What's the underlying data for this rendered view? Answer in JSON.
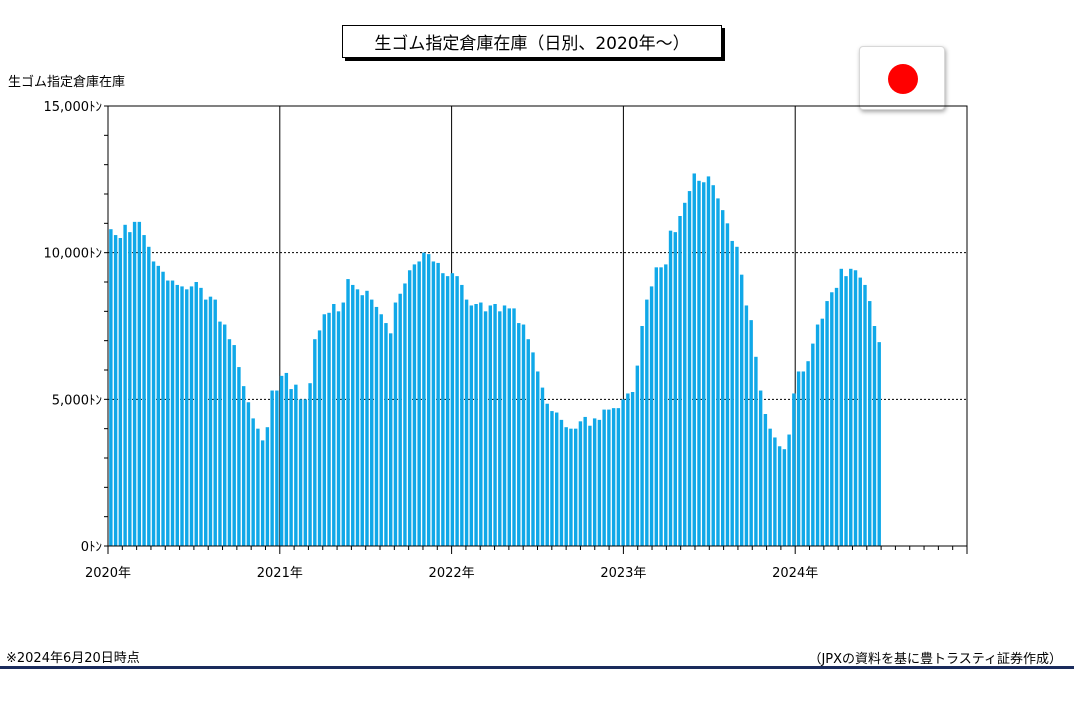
{
  "colors": {
    "bar": "#10a8e8",
    "flag_disc": "#ff0000",
    "footer_rule": "#1a2b5c"
  },
  "flag": {
    "icon": "japan-flag-icon"
  },
  "footnote": "※2024年6月20日時点",
  "source": "（JPXの資料を基に豊トラスティ証券作成）",
  "chart_data": {
    "type": "bar",
    "title": "生ゴム指定倉庫在庫（日別、2020年～）",
    "ylabel": "生ゴム指定倉庫在庫",
    "ylim": [
      0,
      15000
    ],
    "yticks": [
      {
        "value": 0,
        "label": "0ﾄﾝ"
      },
      {
        "value": 5000,
        "label": "5,000ﾄﾝ"
      },
      {
        "value": 10000,
        "label": "10,000ﾄﾝ"
      },
      {
        "value": 15000,
        "label": "15,000ﾄﾝ"
      }
    ],
    "xticks": [
      "2020年",
      "2021年",
      "2022年",
      "2023年",
      "2024年"
    ],
    "xlim_years": [
      2020,
      2025
    ],
    "grid": {
      "horizontal": true,
      "vertical_year_lines": true
    },
    "values": [
      10800,
      10600,
      10500,
      10950,
      10700,
      11050,
      11050,
      10600,
      10200,
      9700,
      9550,
      9350,
      9050,
      9050,
      8900,
      8850,
      8750,
      8850,
      9000,
      8800,
      8400,
      8500,
      8400,
      7650,
      7550,
      7050,
      6850,
      6100,
      5450,
      4900,
      4350,
      4000,
      3600,
      4050,
      5300,
      5300,
      5800,
      5900,
      5350,
      5500,
      5000,
      5000,
      5550,
      7050,
      7350,
      7900,
      7950,
      8250,
      8000,
      8300,
      9100,
      8900,
      8750,
      8550,
      8700,
      8400,
      8150,
      7900,
      7600,
      7250,
      8300,
      8600,
      8950,
      9400,
      9600,
      9700,
      10000,
      9950,
      9700,
      9650,
      9300,
      9200,
      9300,
      9200,
      8900,
      8400,
      8200,
      8250,
      8300,
      8000,
      8200,
      8250,
      8000,
      8200,
      8100,
      8100,
      7600,
      7550,
      7050,
      6600,
      5950,
      5400,
      4850,
      4600,
      4550,
      4300,
      4050,
      4000,
      4000,
      4250,
      4400,
      4100,
      4350,
      4300,
      4650,
      4650,
      4700,
      4700,
      5000,
      5200,
      5250,
      6150,
      7500,
      8400,
      8850,
      9500,
      9500,
      9600,
      10750,
      10700,
      11250,
      11700,
      12100,
      12700,
      12450,
      12400,
      12600,
      12300,
      11850,
      11450,
      11000,
      10400,
      10200,
      9250,
      8200,
      7700,
      6450,
      5300,
      4500,
      4000,
      3700,
      3400,
      3300,
      3800,
      5200,
      5950,
      5950,
      6300,
      6900,
      7550,
      7750,
      8350,
      8650,
      8800,
      9450,
      9200,
      9450,
      9400,
      9150,
      8900,
      8350,
      7500,
      6950
    ]
  }
}
